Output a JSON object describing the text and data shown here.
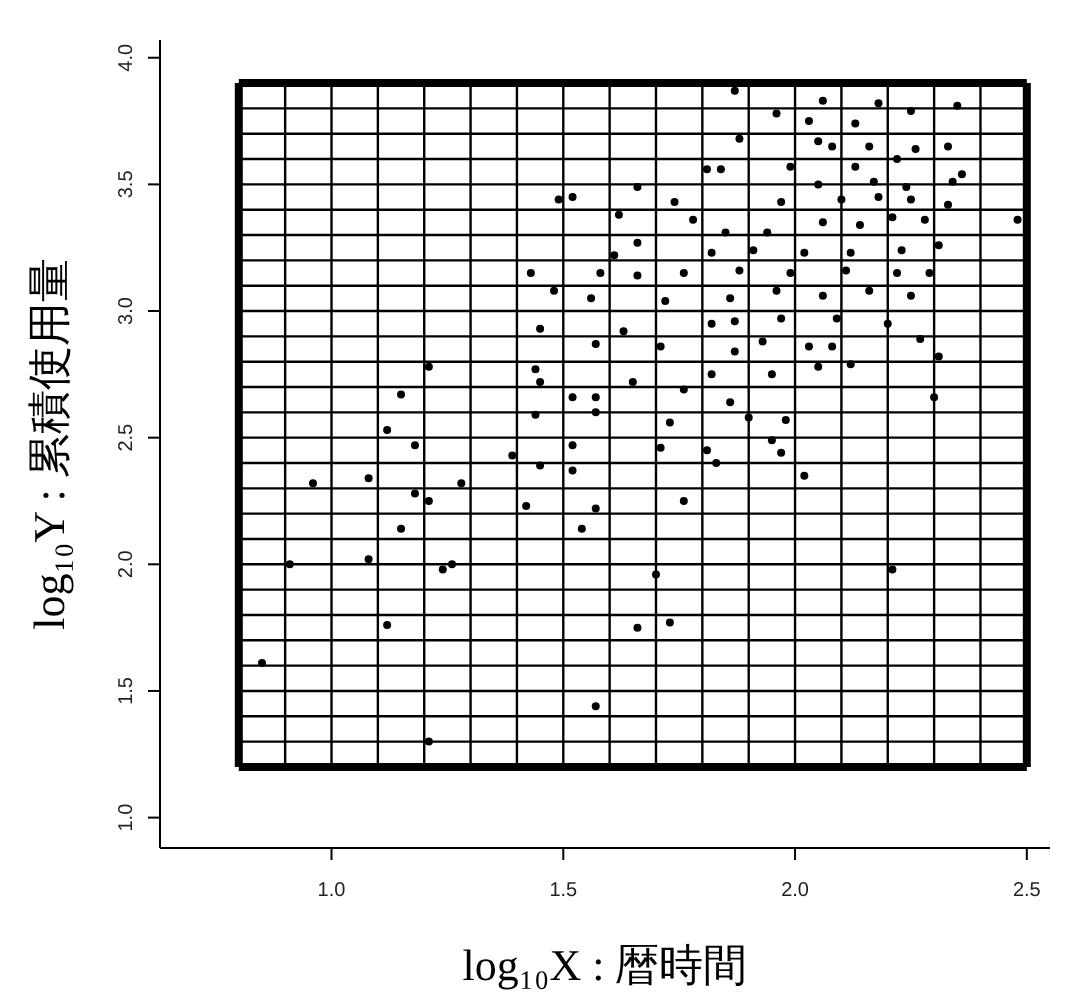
{
  "chart_data": {
    "type": "scatter",
    "xlabel": "log₁₀X : 暦時間",
    "ylabel": "log₁₀Y : 累積使用量",
    "marker": "circle",
    "xlim": [
      0.63,
      2.55
    ],
    "ylim": [
      0.88,
      4.07
    ],
    "xticks": [
      {
        "value": 1,
        "label": "1.0"
      },
      {
        "value": 1.5,
        "label": "1.5"
      },
      {
        "value": 2,
        "label": "2.0"
      },
      {
        "value": 2.5,
        "label": "2.5"
      }
    ],
    "yticks": [
      {
        "value": 1,
        "label": "1.0"
      },
      {
        "value": 1.5,
        "label": "1.5"
      },
      {
        "value": 2,
        "label": "2.0"
      },
      {
        "value": 2.5,
        "label": "2.5"
      },
      {
        "value": 3,
        "label": "3.0"
      },
      {
        "value": 3.5,
        "label": "3.5"
      },
      {
        "value": 4,
        "label": "4.0"
      }
    ],
    "ref_lines": [
      {
        "axis": "x",
        "value": 0.8,
        "color": "#000000"
      },
      {
        "axis": "x",
        "value": 0.9,
        "color": "#000000"
      },
      {
        "axis": "x",
        "value": 1.0,
        "color": "#000000"
      },
      {
        "axis": "x",
        "value": 1.1,
        "color": "#000000"
      },
      {
        "axis": "x",
        "value": 1.2,
        "color": "#000000"
      },
      {
        "axis": "x",
        "value": 1.3,
        "color": "#000000"
      },
      {
        "axis": "x",
        "value": 1.4,
        "color": "#000000"
      },
      {
        "axis": "x",
        "value": 1.5,
        "color": "#000000"
      },
      {
        "axis": "x",
        "value": 1.6,
        "color": "#000000"
      },
      {
        "axis": "x",
        "value": 1.7,
        "color": "#000000"
      },
      {
        "axis": "x",
        "value": 1.8,
        "color": "#000000"
      },
      {
        "axis": "x",
        "value": 1.9,
        "color": "#000000"
      },
      {
        "axis": "x",
        "value": 2.0,
        "color": "#000000"
      },
      {
        "axis": "x",
        "value": 2.1,
        "color": "#000000"
      },
      {
        "axis": "x",
        "value": 2.2,
        "color": "#000000"
      },
      {
        "axis": "x",
        "value": 2.3,
        "color": "#000000"
      },
      {
        "axis": "x",
        "value": 2.4,
        "color": "#000000"
      },
      {
        "axis": "x",
        "value": 2.5,
        "color": "#000000"
      },
      {
        "axis": "y",
        "value": 1.2,
        "color": "#000000"
      },
      {
        "axis": "y",
        "value": 1.3,
        "color": "#000000"
      },
      {
        "axis": "y",
        "value": 1.4,
        "color": "#000000"
      },
      {
        "axis": "y",
        "value": 1.5,
        "color": "#000000"
      },
      {
        "axis": "y",
        "value": 1.6,
        "color": "#000000"
      },
      {
        "axis": "y",
        "value": 1.7,
        "color": "#000000"
      },
      {
        "axis": "y",
        "value": 1.8,
        "color": "#000000"
      },
      {
        "axis": "y",
        "value": 1.9,
        "color": "#000000"
      },
      {
        "axis": "y",
        "value": 2.0,
        "color": "#000000"
      },
      {
        "axis": "y",
        "value": 2.1,
        "color": "#000000"
      },
      {
        "axis": "y",
        "value": 2.2,
        "color": "#000000"
      },
      {
        "axis": "y",
        "value": 2.3,
        "color": "#000000"
      },
      {
        "axis": "y",
        "value": 2.4,
        "color": "#000000"
      },
      {
        "axis": "y",
        "value": 2.5,
        "color": "#000000"
      },
      {
        "axis": "y",
        "value": 2.6,
        "color": "#000000"
      },
      {
        "axis": "y",
        "value": 2.7,
        "color": "#000000"
      },
      {
        "axis": "y",
        "value": 2.8,
        "color": "#000000"
      },
      {
        "axis": "y",
        "value": 2.9,
        "color": "#000000"
      },
      {
        "axis": "y",
        "value": 3.0,
        "color": "#000000"
      },
      {
        "axis": "y",
        "value": 3.1,
        "color": "#000000"
      },
      {
        "axis": "y",
        "value": 3.2,
        "color": "#000000"
      },
      {
        "axis": "y",
        "value": 3.3,
        "color": "#000000"
      },
      {
        "axis": "y",
        "value": 3.4,
        "color": "#000000"
      },
      {
        "axis": "y",
        "value": 3.5,
        "color": "#000000"
      },
      {
        "axis": "y",
        "value": 3.6,
        "color": "#000000"
      },
      {
        "axis": "y",
        "value": 3.7,
        "color": "#000000"
      },
      {
        "axis": "y",
        "value": 3.8,
        "color": "#000000"
      },
      {
        "axis": "y",
        "value": 3.9,
        "color": "#000000"
      }
    ],
    "series": [
      {
        "color": "#000000",
        "x": [
          1.87,
          2.06,
          2.35,
          1.96,
          2.25,
          2.18,
          2.03,
          2.13,
          1.88,
          2.33,
          2.05,
          1.81,
          2.36,
          1.66,
          1.74,
          1.52,
          2.48,
          1.62,
          1.49,
          1.78,
          1.66,
          1.61,
          1.43,
          1.58,
          1.48,
          1.45,
          1.56,
          1.57,
          1.63,
          1.21,
          1.44,
          1.45,
          1.52,
          1.57,
          1.15,
          1.44,
          1.57,
          1.73,
          1.9,
          1.98,
          1.12,
          1.86,
          2.3,
          2.12,
          2.31,
          1.76,
          1.65,
          1.82,
          1.95,
          2.05,
          1.71,
          1.87,
          1.93,
          2.03,
          2.08,
          2.27,
          1.82,
          1.87,
          1.97,
          2.09,
          2.2,
          1.72,
          1.86,
          1.96,
          2.06,
          2.16,
          2.25,
          1.66,
          1.76,
          1.88,
          1.99,
          2.11,
          2.22,
          2.29,
          1.82,
          1.91,
          2.02,
          2.12,
          2.23,
          2.31,
          1.85,
          1.94,
          2.06,
          2.14,
          2.21,
          2.28,
          1.97,
          2.1,
          2.18,
          2.25,
          2.33,
          2.05,
          2.17,
          2.24,
          2.34,
          1.99,
          2.13,
          2.22,
          2.26,
          2.16,
          2.08,
          1.84,
          1.18,
          1.52,
          1.71,
          1.81,
          1.95,
          1.97,
          1.39,
          1.45,
          1.52,
          1.83,
          2.02,
          0.96,
          1.08,
          1.28,
          1.18,
          1.21,
          1.42,
          1.57,
          1.76,
          1.15,
          1.54,
          0.91,
          1.08,
          1.24,
          1.26,
          1.7,
          2.21,
          1.12,
          1.66,
          1.73,
          0.85,
          1.57,
          1.21
        ],
        "values": [
          3.87,
          3.83,
          3.81,
          3.78,
          3.79,
          3.82,
          3.75,
          3.74,
          3.68,
          3.65,
          3.67,
          3.56,
          3.54,
          3.49,
          3.43,
          3.45,
          3.36,
          3.38,
          3.44,
          3.36,
          3.27,
          3.22,
          3.15,
          3.15,
          3.08,
          2.93,
          3.05,
          2.87,
          2.92,
          2.78,
          2.77,
          2.72,
          2.66,
          2.66,
          2.67,
          2.59,
          2.6,
          2.56,
          2.58,
          2.57,
          2.53,
          2.64,
          2.66,
          2.79,
          2.82,
          2.69,
          2.72,
          2.75,
          2.75,
          2.78,
          2.86,
          2.84,
          2.88,
          2.86,
          2.86,
          2.89,
          2.95,
          2.96,
          2.97,
          2.97,
          2.95,
          3.04,
          3.05,
          3.08,
          3.06,
          3.08,
          3.06,
          3.14,
          3.15,
          3.16,
          3.15,
          3.16,
          3.15,
          3.15,
          3.23,
          3.24,
          3.23,
          3.23,
          3.24,
          3.26,
          3.31,
          3.31,
          3.35,
          3.34,
          3.37,
          3.36,
          3.43,
          3.44,
          3.45,
          3.44,
          3.42,
          3.5,
          3.51,
          3.49,
          3.51,
          3.57,
          3.57,
          3.6,
          3.64,
          3.65,
          3.65,
          3.56,
          2.47,
          2.47,
          2.46,
          2.45,
          2.49,
          2.44,
          2.43,
          2.39,
          2.37,
          2.4,
          2.35,
          2.32,
          2.34,
          2.32,
          2.28,
          2.25,
          2.23,
          2.22,
          2.25,
          2.14,
          2.14,
          2.0,
          2.02,
          1.98,
          2.0,
          1.96,
          1.98,
          1.76,
          1.75,
          1.77,
          1.61,
          1.44,
          1.3
        ]
      }
    ]
  }
}
